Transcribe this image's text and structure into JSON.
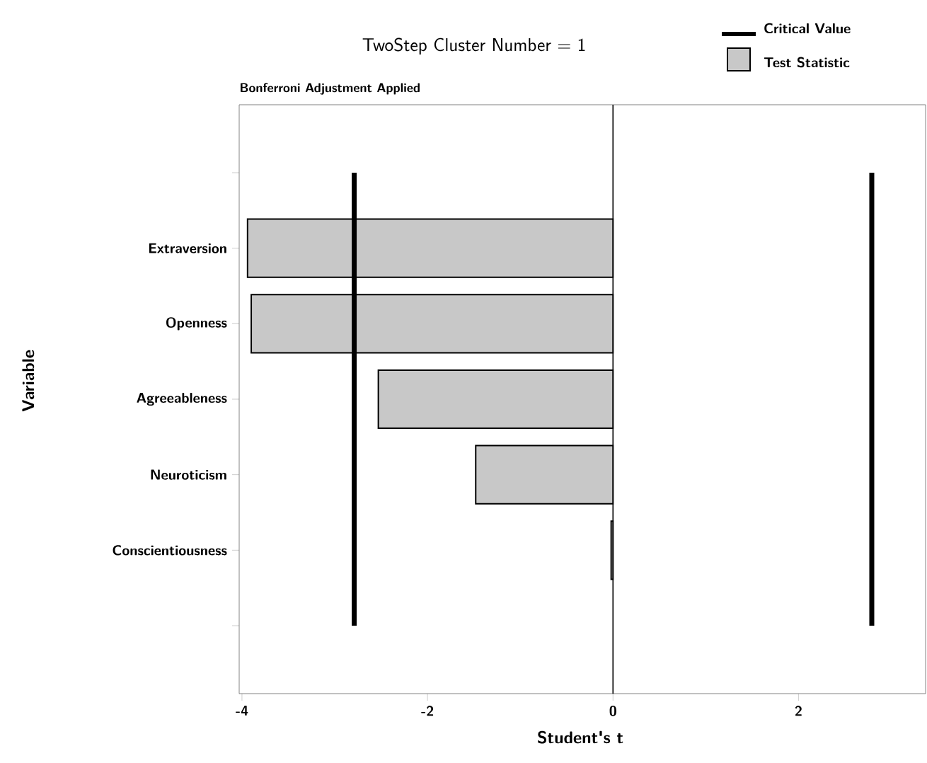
{
  "chart_data": {
    "type": "bar",
    "orientation": "horizontal",
    "title": "TwoStep Cluster Number = 1",
    "subtitle": "Bonferroni Adjustment Applied",
    "xlabel": "Student's t",
    "ylabel": "Variable",
    "categories": [
      null,
      "Extraversion",
      "Openness",
      "Agreeableness",
      "Neuroticism",
      "Conscientiousness",
      null
    ],
    "series": [
      {
        "name": "Test Statistic",
        "color": "#c8c8c8",
        "values": [
          null,
          -3.94,
          -3.9,
          -2.53,
          -1.48,
          -0.02,
          null
        ]
      }
    ],
    "xlim": [
      -4.03,
      3.37
    ],
    "xticks": [
      -4,
      -2,
      0,
      2
    ],
    "ref_lines": [
      {
        "axis": "x",
        "value": -2.79,
        "label": "Critical Value",
        "color": "#000000"
      },
      {
        "axis": "x",
        "value": 2.79,
        "label": null,
        "color": "#000000"
      },
      {
        "axis": "x",
        "value": 0,
        "label": null,
        "color": "#000000"
      }
    ],
    "legend": "top right",
    "grid": false
  }
}
